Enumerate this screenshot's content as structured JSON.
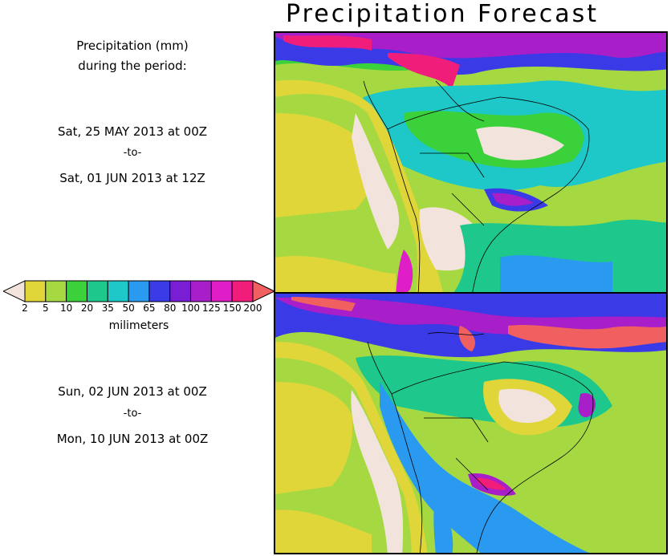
{
  "title": "Precipitation Forecast",
  "period_heading_line1": "Precipitation (mm)",
  "period_heading_line2": "during the period:",
  "period1": {
    "start": "Sat, 25 MAY 2013 at 00Z",
    "sep": "-to-",
    "end": "Sat, 01 JUN 2013 at 12Z"
  },
  "period2": {
    "start": "Sun, 02 JUN 2013 at 00Z",
    "sep": "-to-",
    "end": "Mon, 10 JUN 2013 at 00Z"
  },
  "colorbar": {
    "units": "milimeters",
    "ticks": [
      "2",
      "5",
      "10",
      "20",
      "35",
      "50",
      "65",
      "80",
      "100",
      "125",
      "150",
      "200"
    ],
    "colors": [
      "#f2e4dc",
      "#e0d63a",
      "#a6d941",
      "#3ad13a",
      "#1ec88c",
      "#1ec8c8",
      "#2a9af0",
      "#3a3ae6",
      "#7a1ed6",
      "#a81ec8",
      "#e01ec8",
      "#f01e7a",
      "#f06060"
    ]
  }
}
